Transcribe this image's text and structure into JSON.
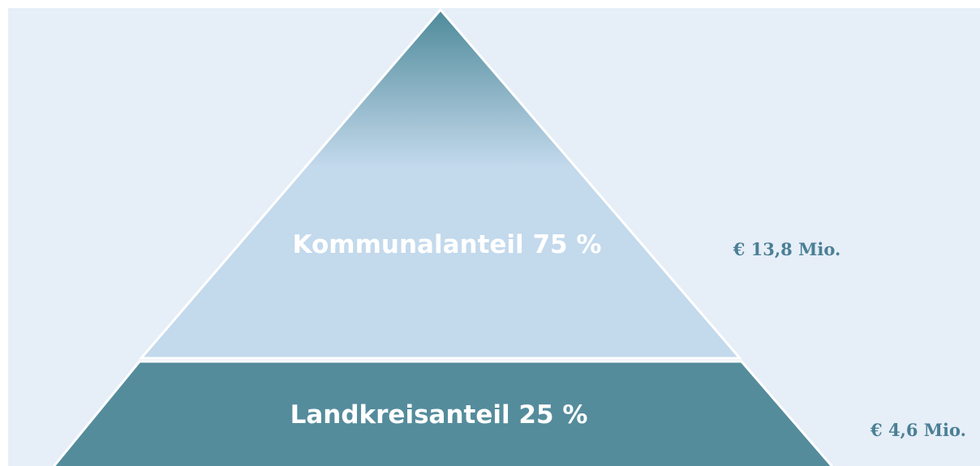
{
  "layers": [
    {
      "label": "Kommunalanteil 75 %",
      "amount": "€ 13,8 Mio."
    },
    {
      "label": "Landkreisanteil 25 %",
      "amount": "€ 4,6 Mio."
    }
  ]
}
